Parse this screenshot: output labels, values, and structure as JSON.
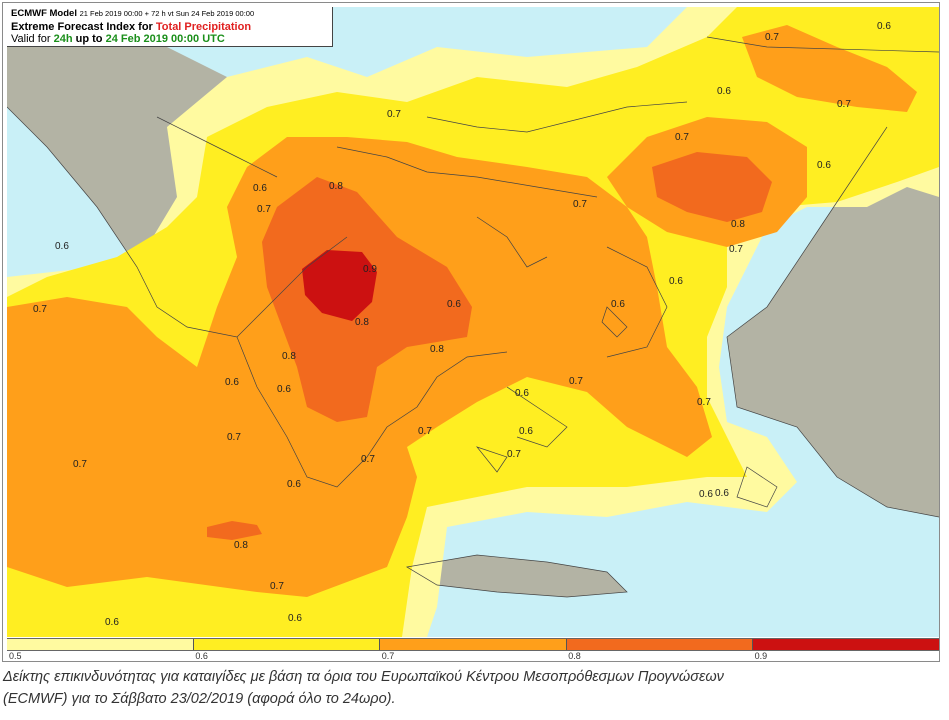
{
  "header": {
    "model": "ECMWF Model",
    "run_info": "21 Feb 2019 00:00 + 72 h vt Sun 24 Feb 2019 00:00",
    "title_prefix": "Extreme Forecast Index for",
    "title_variable": "Total Precipitation",
    "valid_prefix": "Valid for",
    "valid_period": "24h",
    "valid_middle": "up to",
    "valid_date": "24 Feb 2019 00:00 UTC"
  },
  "colors": {
    "sea": "#c9f0f7",
    "land": "#b3b3a4",
    "efi_0_5": "#fffaa0",
    "efi_0_6": "#ffee22",
    "efi_0_7": "#ff9f1a",
    "efi_0_8": "#f26a1e",
    "efi_0_9": "#cc1111"
  },
  "colorbar": {
    "segment_colors": [
      "#fffaa0",
      "#ffee22",
      "#ff9f1a",
      "#f26a1e",
      "#cc1111"
    ],
    "tick_labels": [
      "0.5",
      "0.6",
      "0.7",
      "0.8",
      "0.9"
    ]
  },
  "contour_labels": [
    "0.6",
    "0.7",
    "0.6",
    "0.7",
    "0.7",
    "0.6",
    "0.7",
    "0.6",
    "0.8",
    "0.7",
    "0.7",
    "0.6",
    "0.6",
    "0.7",
    "0.9",
    "0.8",
    "0.8",
    "0.7",
    "0.6",
    "0.6",
    "0.7",
    "0.6",
    "0.8",
    "0.6",
    "0.7",
    "0.7",
    "0.7",
    "0.6",
    "0.7",
    "0.6",
    "0.6",
    "0.7",
    "0.8",
    "0.7",
    "0.6",
    "0.6",
    "0.6",
    "0.6",
    "0.8",
    "0.7"
  ],
  "caption": {
    "line1": "Δείκτης επικινδυνότητας για καταιγίδες με βάση τα όρια του Ευρωπαϊκού Κέντρου Μεσοπρόθεσμων Προγνώσεων",
    "line2": "(ECMWF) για το Σάββατο 23/02/2019 (αφορά όλο το 24ωρο)."
  }
}
